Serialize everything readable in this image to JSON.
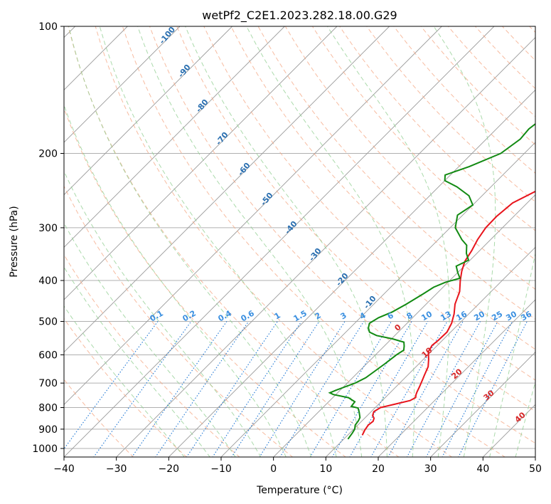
{
  "chart_data": {
    "type": "line",
    "title": "wetPf2_C2E1.2023.282.18.00.G29",
    "xlabel": "Temperature (°C)",
    "ylabel": "Pressure (hPa)",
    "xlim": [
      -40,
      50
    ],
    "ylim": [
      1050,
      100
    ],
    "y_scale": "log",
    "x_ticks": [
      -40,
      -30,
      -20,
      -10,
      0,
      10,
      20,
      30,
      40,
      50
    ],
    "y_ticks": [
      100,
      200,
      300,
      400,
      500,
      600,
      700,
      800,
      900,
      1000
    ],
    "grid": true,
    "series": [
      {
        "color": "#e8141c",
        "values": [
          [
            930,
            12.8
          ],
          [
            905,
            12.3
          ],
          [
            880,
            12.0
          ],
          [
            862,
            12.2
          ],
          [
            848,
            11.8
          ],
          [
            835,
            11.0
          ],
          [
            818,
            10.5
          ],
          [
            800,
            11.0
          ],
          [
            786,
            13.0
          ],
          [
            770,
            15.3
          ],
          [
            758,
            15.8
          ],
          [
            745,
            15.3
          ],
          [
            735,
            15.0
          ],
          [
            715,
            14.5
          ],
          [
            690,
            13.8
          ],
          [
            670,
            13.2
          ],
          [
            640,
            12.3
          ],
          [
            615,
            11.0
          ],
          [
            590,
            9.5
          ],
          [
            570,
            9.0
          ],
          [
            555,
            9.2
          ],
          [
            530,
            9.3
          ],
          [
            505,
            8.5
          ],
          [
            480,
            7.2
          ],
          [
            455,
            5.5
          ],
          [
            425,
            4.0
          ],
          [
            400,
            2.0
          ],
          [
            380,
            0.5
          ],
          [
            360,
            -0.8
          ],
          [
            340,
            -1.5
          ],
          [
            320,
            -2.5
          ],
          [
            300,
            -3.2
          ],
          [
            282,
            -3.3
          ],
          [
            262,
            -2.8
          ],
          [
            245,
            -0.5
          ],
          [
            230,
            1.5
          ],
          [
            215,
            3.5
          ],
          [
            200,
            5.5
          ],
          [
            185,
            7.5
          ],
          [
            170,
            9.8
          ],
          [
            155,
            12.2
          ],
          [
            143,
            14.8
          ],
          [
            133,
            18.5
          ],
          [
            125,
            20.7
          ],
          [
            118,
            21.0
          ],
          [
            112,
            22.5
          ],
          [
            106,
            24.5
          ],
          [
            100,
            25.8
          ]
        ]
      },
      {
        "color": "#128a12",
        "values": [
          [
            950,
            10.8
          ],
          [
            920,
            10.5
          ],
          [
            900,
            10.2
          ],
          [
            880,
            9.5
          ],
          [
            860,
            9.3
          ],
          [
            845,
            9.0
          ],
          [
            820,
            7.8
          ],
          [
            802,
            6.8
          ],
          [
            795,
            5.2
          ],
          [
            775,
            5.0
          ],
          [
            758,
            3.0
          ],
          [
            745,
            -0.5
          ],
          [
            738,
            -1.5
          ],
          [
            728,
            -0.8
          ],
          [
            712,
            0.5
          ],
          [
            700,
            1.5
          ],
          [
            680,
            2.5
          ],
          [
            655,
            3.0
          ],
          [
            630,
            3.5
          ],
          [
            600,
            4.0
          ],
          [
            585,
            4.5
          ],
          [
            572,
            3.8
          ],
          [
            560,
            3.0
          ],
          [
            550,
            0.2
          ],
          [
            540,
            -3.5
          ],
          [
            530,
            -5.5
          ],
          [
            518,
            -6.5
          ],
          [
            505,
            -7.2
          ],
          [
            490,
            -6.5
          ],
          [
            475,
            -5.0
          ],
          [
            455,
            -3.8
          ],
          [
            430,
            -2.5
          ],
          [
            415,
            -1.8
          ],
          [
            404,
            -0.5
          ],
          [
            395,
            1.5
          ],
          [
            383,
            0.0
          ],
          [
            370,
            -1.5
          ],
          [
            358,
            -0.3
          ],
          [
            345,
            -2.0
          ],
          [
            330,
            -3.5
          ],
          [
            320,
            -5.5
          ],
          [
            300,
            -9.0
          ],
          [
            280,
            -11.0
          ],
          [
            265,
            -10.0
          ],
          [
            252,
            -12.5
          ],
          [
            240,
            -16.5
          ],
          [
            232,
            -20.0
          ],
          [
            225,
            -21.0
          ],
          [
            215,
            -18.0
          ],
          [
            200,
            -14.5
          ],
          [
            185,
            -13.5
          ],
          [
            175,
            -13.8
          ],
          [
            162,
            -13.0
          ],
          [
            150,
            -12.0
          ],
          [
            140,
            -11.0
          ],
          [
            128,
            -8.0
          ],
          [
            118,
            -3.8
          ],
          [
            110,
            0.0
          ],
          [
            104,
            2.5
          ],
          [
            100,
            3.5
          ]
        ]
      }
    ],
    "dry_adiabat_labels": [
      "-100",
      "-90",
      "-80",
      "-70",
      "-60",
      "-50",
      "-40",
      "-30",
      "-20",
      "-10"
    ],
    "mixing_ratio_labels": [
      "0.1",
      "0.2",
      "0.4",
      "0.6",
      "1",
      "1.5",
      "2",
      "3",
      "4",
      "6",
      "8",
      "10",
      "13",
      "16",
      "20",
      "25",
      "30",
      "36"
    ],
    "moist_adiabat_labels": [
      "0",
      "10",
      "20",
      "30",
      "40"
    ],
    "colors": {
      "temperature": "#e8141c",
      "dewpoint": "#128a12",
      "dry_adiabats": "#f4a582",
      "moist_adiabats": "#8fce8f",
      "mixing_ratio": "#1f77d4",
      "isotherms": "#9a9a9a"
    }
  }
}
